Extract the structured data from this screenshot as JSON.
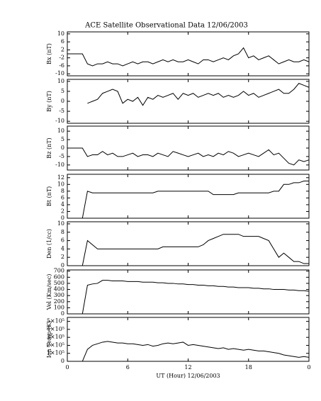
{
  "chart_data": [
    {
      "type": "line",
      "title": "ACE Satellite Observational Data   12/06/2003",
      "ylabel": "Bx (nT)",
      "ylim": [
        -11,
        11
      ],
      "yticks": [
        10,
        6,
        2,
        -2,
        -6,
        -10
      ],
      "series": [
        {
          "color": "#000000",
          "values": [
            0,
            0,
            0,
            0,
            -5,
            -6,
            -5,
            -5,
            -4,
            -5,
            -5,
            -6,
            -5,
            -4,
            -5,
            -4,
            -4,
            -5,
            -4,
            -3,
            -4,
            -3,
            -4,
            -4,
            -3,
            -4,
            -5,
            -3,
            -3,
            -4,
            -3,
            -2,
            -3,
            -1,
            0,
            3,
            -2,
            -1,
            -3,
            -2,
            -1,
            -3,
            -5,
            -4,
            -3,
            -4,
            -4,
            -3,
            -4
          ]
        }
      ]
    },
    {
      "type": "line",
      "ylabel": "By (nT)",
      "ylim": [
        -11,
        11
      ],
      "yticks": [
        10,
        5,
        0,
        -5,
        -10
      ],
      "series": [
        {
          "color": "#000000",
          "values": [
            null,
            null,
            null,
            null,
            -1,
            0,
            1,
            4,
            5,
            6,
            5,
            -1,
            1,
            0,
            2,
            -2,
            2,
            1,
            3,
            2,
            3,
            4,
            1,
            4,
            3,
            4,
            2,
            3,
            4,
            3,
            4,
            2,
            3,
            2,
            3,
            5,
            3,
            4,
            2,
            3,
            4,
            5,
            6,
            4,
            4,
            6,
            9,
            8,
            7
          ]
        }
      ]
    },
    {
      "type": "line",
      "ylabel": "Bz (nT)",
      "ylim": [
        -13,
        13
      ],
      "yticks": [
        10,
        5,
        0,
        -5,
        -10
      ],
      "series": [
        {
          "color": "#000000",
          "values": [
            0,
            0,
            0,
            0,
            -5,
            -4,
            -4,
            -2,
            -4,
            -3,
            -5,
            -5,
            -4,
            -3,
            -5,
            -4,
            -4,
            -5,
            -3,
            -4,
            -5,
            -2,
            -3,
            -4,
            -5,
            -4,
            -3,
            -5,
            -4,
            -5,
            -3,
            -4,
            -2,
            -3,
            -5,
            -4,
            -3,
            -4,
            -5,
            -3,
            -1,
            -4,
            -3,
            -6,
            -9,
            -10,
            -7,
            -8,
            -7
          ]
        }
      ]
    },
    {
      "type": "line",
      "ylabel": "Bt (nT)",
      "ylim": [
        0,
        13
      ],
      "yticks": [
        0,
        2,
        4,
        6,
        8,
        10,
        12
      ],
      "series": [
        {
          "color": "#000000",
          "values": [
            0,
            0,
            0,
            0,
            8,
            7.5,
            7.5,
            7.5,
            7.5,
            7.5,
            7.5,
            7.5,
            7.5,
            7.5,
            7.5,
            7.5,
            7.5,
            7.5,
            8,
            8,
            8,
            8,
            8,
            8,
            8,
            8,
            8,
            8,
            8,
            7,
            7,
            7,
            7,
            7,
            7.5,
            7.5,
            7.5,
            7.5,
            7.5,
            7.5,
            7.5,
            8,
            8,
            10,
            10,
            10.5,
            10.5,
            11,
            11
          ]
        }
      ]
    },
    {
      "type": "line",
      "ylabel": "Den (1/cc)",
      "ylim": [
        0,
        10.5
      ],
      "yticks": [
        0,
        2,
        4,
        6,
        8,
        10
      ],
      "series": [
        {
          "color": "#000000",
          "values": [
            0,
            0,
            0,
            0,
            6,
            5,
            4,
            4,
            4,
            4,
            4,
            4,
            4,
            4,
            4,
            4,
            4,
            4,
            4,
            4.5,
            4.5,
            4.5,
            4.5,
            4.5,
            4.5,
            4.5,
            4.5,
            5,
            6,
            6.5,
            7,
            7.5,
            7.5,
            7.5,
            7.5,
            7,
            7,
            7,
            7,
            6.5,
            6,
            4,
            2,
            3,
            2,
            1,
            1,
            0.5,
            0.5
          ]
        }
      ]
    },
    {
      "type": "line",
      "ylabel": "Vel (Km/sec)",
      "ylim": [
        0,
        720
      ],
      "yticks": [
        0,
        100,
        200,
        300,
        400,
        500,
        600,
        700
      ],
      "series": [
        {
          "color": "#000000",
          "values": [
            0,
            0,
            0,
            0,
            470,
            490,
            500,
            550,
            550,
            540,
            540,
            540,
            530,
            530,
            530,
            520,
            520,
            520,
            510,
            510,
            500,
            500,
            490,
            490,
            480,
            480,
            470,
            470,
            460,
            460,
            450,
            450,
            440,
            440,
            430,
            430,
            430,
            420,
            420,
            410,
            410,
            400,
            400,
            400,
            390,
            390,
            380,
            380,
            370
          ]
        }
      ]
    },
    {
      "type": "line",
      "ylabel": "Ion Temp (K)",
      "xlabel": "UT (Hour)   12/06/2003",
      "ylim": [
        0,
        550000
      ],
      "yticks": [
        0,
        {
          "value": 100000,
          "label": "1×10⁵"
        },
        {
          "value": 200000,
          "label": "2×10⁵"
        },
        {
          "value": 300000,
          "label": "3×10⁵"
        },
        {
          "value": 400000,
          "label": "4×10⁵"
        },
        {
          "value": 500000,
          "label": "5×10⁵"
        }
      ],
      "xlim": [
        0,
        24
      ],
      "xticks": [
        0,
        6,
        12,
        18,
        {
          "value": 24,
          "label": "0"
        }
      ],
      "x": [
        0,
        0.5,
        1,
        1.5,
        2,
        2.5,
        3,
        3.5,
        4,
        4.5,
        5,
        5.5,
        6,
        6.5,
        7,
        7.5,
        8,
        8.5,
        9,
        9.5,
        10,
        10.5,
        11,
        11.5,
        12,
        12.5,
        13,
        13.5,
        14,
        14.5,
        15,
        15.5,
        16,
        16.5,
        17,
        17.5,
        18,
        18.5,
        19,
        19.5,
        20,
        20.5,
        21,
        21.5,
        22,
        22.5,
        23,
        23.5,
        24
      ],
      "series": [
        {
          "color": "#000000",
          "values": [
            0,
            0,
            0,
            0,
            150000,
            200000,
            220000,
            240000,
            250000,
            240000,
            230000,
            230000,
            220000,
            220000,
            210000,
            200000,
            210000,
            190000,
            200000,
            220000,
            230000,
            220000,
            230000,
            240000,
            200000,
            210000,
            200000,
            190000,
            180000,
            170000,
            160000,
            170000,
            150000,
            160000,
            150000,
            140000,
            150000,
            140000,
            130000,
            130000,
            120000,
            110000,
            100000,
            80000,
            70000,
            60000,
            50000,
            60000,
            50000
          ]
        }
      ]
    }
  ]
}
